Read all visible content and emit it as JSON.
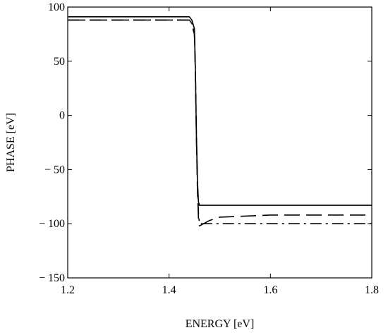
{
  "chart_data": {
    "type": "line",
    "title": "",
    "xlabel": "ENERGY [eV]",
    "ylabel": "PHASE [eV]",
    "xlim": [
      1.2,
      1.8
    ],
    "ylim": [
      -150,
      100
    ],
    "x_ticks": [
      1.2,
      1.4,
      1.6,
      1.8
    ],
    "x_tick_labels": [
      "1.2",
      "1.4",
      "1.6",
      "1.8"
    ],
    "y_ticks": [
      100,
      50,
      0,
      -50,
      -100,
      -150
    ],
    "y_tick_labels": [
      "100",
      "50",
      "0",
      "− 50",
      "− 100",
      "− 150"
    ],
    "grid": false,
    "legend": "none",
    "series": [
      {
        "style": "solid",
        "color": "#000000",
        "x": [
          1.2,
          1.3,
          1.4,
          1.44,
          1.445,
          1.45,
          1.452,
          1.454,
          1.456,
          1.458,
          1.46,
          1.8
        ],
        "y": [
          91,
          91,
          91,
          91,
          88,
          80,
          40,
          -20,
          -60,
          -80,
          -83,
          -83
        ]
      },
      {
        "style": "dashed",
        "color": "#000000",
        "x": [
          1.2,
          1.3,
          1.4,
          1.44,
          1.445,
          1.448,
          1.45,
          1.452,
          1.454,
          1.456,
          1.458,
          1.46,
          1.48,
          1.5,
          1.55,
          1.6,
          1.7,
          1.8
        ],
        "y": [
          88,
          88,
          88,
          88,
          85,
          78,
          75,
          40,
          -20,
          -70,
          -95,
          -102,
          -97,
          -94,
          -93,
          -92,
          -92,
          -92
        ]
      },
      {
        "style": "dashdot",
        "color": "#000000",
        "x": [
          1.2,
          1.3,
          1.4,
          1.44,
          1.446,
          1.45,
          1.452,
          1.454,
          1.456,
          1.458,
          1.46,
          1.47,
          1.6,
          1.8
        ],
        "y": [
          88,
          88,
          88,
          88,
          84,
          76,
          40,
          -20,
          -60,
          -90,
          -100,
          -100,
          -100,
          -100
        ]
      }
    ]
  }
}
